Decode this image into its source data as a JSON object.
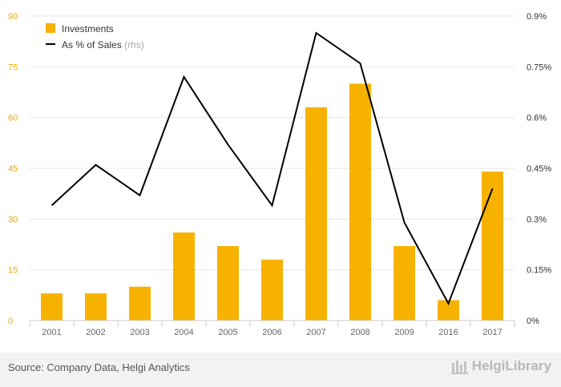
{
  "chart_data": {
    "type": "bar",
    "categories": [
      "2001",
      "2002",
      "2003",
      "2004",
      "2005",
      "2006",
      "2007",
      "2008",
      "2009",
      "2016",
      "2017"
    ],
    "series": [
      {
        "name": "Investments",
        "type": "bar",
        "axis": "left",
        "values": [
          8,
          8,
          10,
          26,
          22,
          18,
          63,
          70,
          22,
          6,
          44
        ]
      },
      {
        "name": "As % of Sales",
        "name_suffix": "(rhs)",
        "type": "line",
        "axis": "right",
        "values": [
          0.34,
          0.46,
          0.37,
          0.72,
          0.52,
          0.34,
          0.85,
          0.76,
          0.29,
          0.05,
          0.39
        ]
      }
    ],
    "ylim": [
      0,
      90
    ],
    "yticks": [
      0,
      15,
      30,
      45,
      60,
      75,
      90
    ],
    "y2lim": [
      0,
      0.9
    ],
    "y2ticks": [
      "0%",
      "0.15%",
      "0.3%",
      "0.45%",
      "0.6%",
      "0.75%",
      "0.9%"
    ],
    "grid": true,
    "legend": "top-left"
  },
  "colors": {
    "bar": "#f7b200",
    "line": "#000000",
    "grid": "#e6e6e6",
    "tick": "#666666",
    "left_tick": "#f0a800",
    "footer": "#f2f2f2"
  },
  "footer": {
    "source": "Source: Company Data, Helgi Analytics",
    "brand": "HelgiLibrary"
  }
}
